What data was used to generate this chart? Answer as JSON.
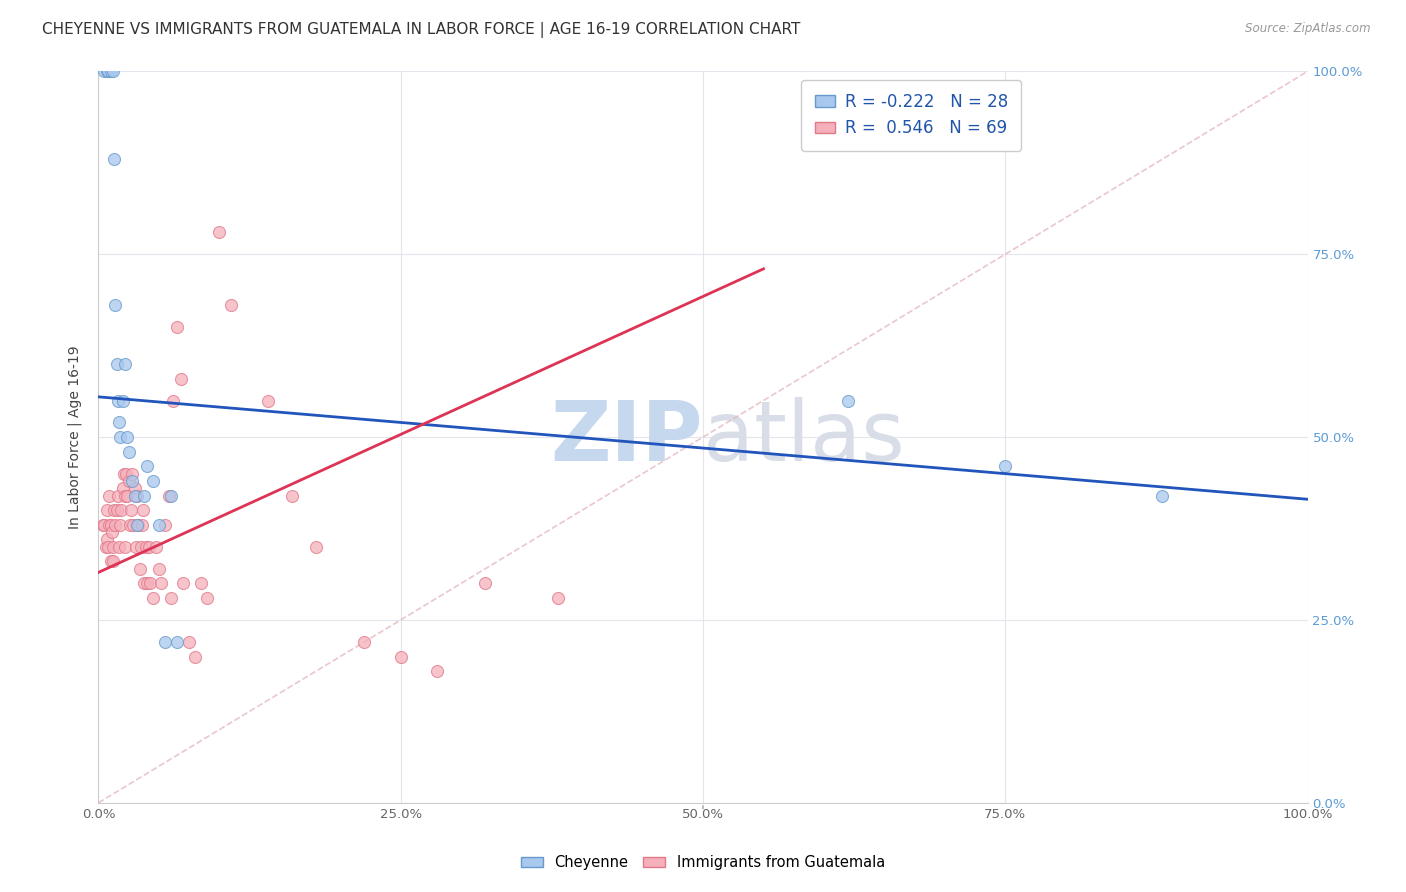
{
  "title": "CHEYENNE VS IMMIGRANTS FROM GUATEMALA IN LABOR FORCE | AGE 16-19 CORRELATION CHART",
  "source": "Source: ZipAtlas.com",
  "ylabel": "In Labor Force | Age 16-19",
  "xlim": [
    0.0,
    1.0
  ],
  "ylim": [
    0.0,
    1.0
  ],
  "cheyenne_color": "#A8C8EE",
  "cheyenne_edge": "#6699CC",
  "guatemala_color": "#F5B0BC",
  "guatemala_edge": "#E07888",
  "blue_line_color": "#2255BB",
  "pink_line_color": "#DD3355",
  "diag_line_color": "#E0B0B8",
  "watermark_color": "#D8E8F8",
  "r_cheyenne": -0.222,
  "n_cheyenne": 28,
  "r_guatemala": 0.546,
  "n_guatemala": 69,
  "blue_trend_x0": 0.0,
  "blue_trend_y0": 0.555,
  "blue_trend_x1": 1.0,
  "blue_trend_y1": 0.415,
  "pink_trend_x0": 0.0,
  "pink_trend_y0": 0.315,
  "pink_trend_x1": 0.55,
  "pink_trend_y1": 0.73,
  "cheyenne_x": [
    0.005,
    0.007,
    0.008,
    0.01,
    0.012,
    0.013,
    0.014,
    0.015,
    0.016,
    0.017,
    0.018,
    0.02,
    0.022,
    0.024,
    0.025,
    0.028,
    0.03,
    0.032,
    0.038,
    0.04,
    0.045,
    0.05,
    0.055,
    0.06,
    0.065,
    0.62,
    0.75,
    0.88
  ],
  "cheyenne_y": [
    1.0,
    1.0,
    1.0,
    1.0,
    1.0,
    0.88,
    0.68,
    0.6,
    0.55,
    0.52,
    0.5,
    0.55,
    0.6,
    0.5,
    0.48,
    0.44,
    0.42,
    0.38,
    0.42,
    0.46,
    0.44,
    0.38,
    0.22,
    0.42,
    0.22,
    0.55,
    0.46,
    0.42
  ],
  "guatemala_x": [
    0.004,
    0.005,
    0.006,
    0.007,
    0.007,
    0.008,
    0.009,
    0.009,
    0.01,
    0.01,
    0.011,
    0.012,
    0.012,
    0.013,
    0.014,
    0.015,
    0.016,
    0.017,
    0.018,
    0.019,
    0.02,
    0.021,
    0.022,
    0.022,
    0.023,
    0.024,
    0.025,
    0.026,
    0.027,
    0.028,
    0.029,
    0.03,
    0.031,
    0.032,
    0.033,
    0.034,
    0.035,
    0.036,
    0.037,
    0.038,
    0.039,
    0.04,
    0.042,
    0.043,
    0.045,
    0.048,
    0.05,
    0.052,
    0.055,
    0.058,
    0.06,
    0.062,
    0.065,
    0.068,
    0.07,
    0.075,
    0.08,
    0.085,
    0.09,
    0.1,
    0.11,
    0.14,
    0.16,
    0.18,
    0.22,
    0.25,
    0.28,
    0.32,
    0.38
  ],
  "guatemala_y": [
    0.38,
    0.38,
    0.35,
    0.36,
    0.4,
    0.35,
    0.42,
    0.38,
    0.38,
    0.33,
    0.37,
    0.33,
    0.35,
    0.4,
    0.38,
    0.4,
    0.42,
    0.35,
    0.38,
    0.4,
    0.43,
    0.45,
    0.42,
    0.35,
    0.45,
    0.42,
    0.44,
    0.38,
    0.4,
    0.45,
    0.38,
    0.43,
    0.35,
    0.42,
    0.38,
    0.32,
    0.35,
    0.38,
    0.4,
    0.3,
    0.35,
    0.3,
    0.35,
    0.3,
    0.28,
    0.35,
    0.32,
    0.3,
    0.38,
    0.42,
    0.28,
    0.55,
    0.65,
    0.58,
    0.3,
    0.22,
    0.2,
    0.3,
    0.28,
    0.78,
    0.68,
    0.55,
    0.42,
    0.35,
    0.22,
    0.2,
    0.18,
    0.3,
    0.28
  ],
  "background_color": "#FFFFFF",
  "grid_color": "#E5E5EE",
  "title_fontsize": 11,
  "axis_label_fontsize": 10,
  "tick_fontsize": 9.5,
  "marker_size": 75
}
